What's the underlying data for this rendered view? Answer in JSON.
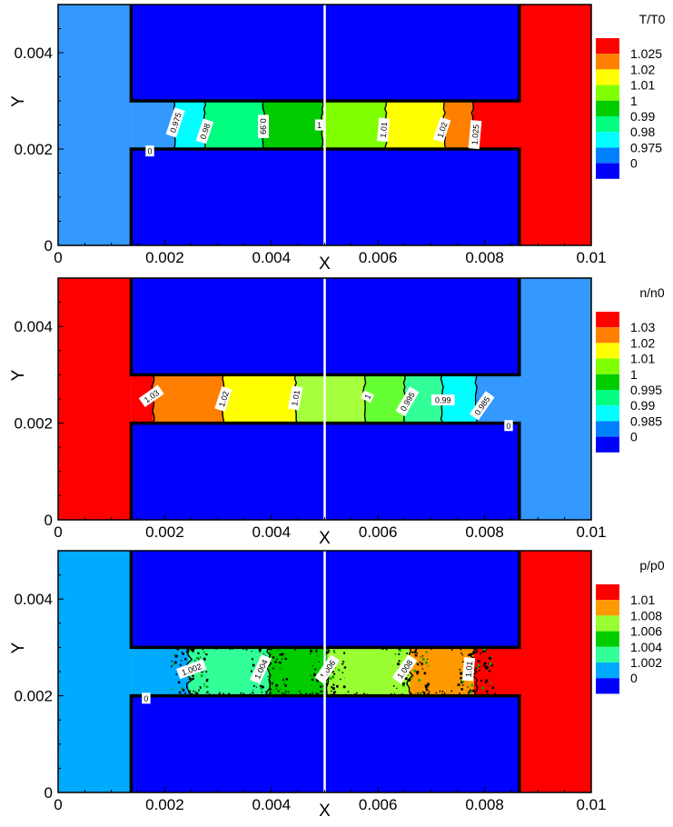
{
  "colors": {
    "background": "#ffffff",
    "block": "#0000ff",
    "wall": "#000000",
    "divider": "#ffffff"
  },
  "chart_data": [
    {
      "type": "contour",
      "xlabel": "X",
      "ylabel": "Y",
      "xlim": [
        0,
        0.01
      ],
      "ylim": [
        0,
        0.005
      ],
      "xticks": [
        "0",
        "0.002",
        "0.004",
        "0.006",
        "0.008",
        "0.01"
      ],
      "yticks": [
        "0",
        "0.002",
        "0.004"
      ],
      "geometry": {
        "left_reservoir_end": 0.00137,
        "right_reservoir_start": 0.00865,
        "channel_bottom": 0.002,
        "channel_top": 0.003
      },
      "legend": {
        "title": "T/T0",
        "levels": [
          {
            "label": "1.025",
            "color": "#ff0000"
          },
          {
            "label": "1.02",
            "color": "#ff8000"
          },
          {
            "label": "1.01",
            "color": "#ffff00"
          },
          {
            "label": "1",
            "color": "#80ff00"
          },
          {
            "label": "0.99",
            "color": "#00cc00"
          },
          {
            "label": "0.98",
            "color": "#00ff80"
          },
          {
            "label": "0.975",
            "color": "#00ffff"
          },
          {
            "label": "0",
            "color": "#0080ff"
          },
          {
            "label": "",
            "color": "#0000ff"
          }
        ]
      },
      "left_reservoir_color": "#3399ff",
      "right_reservoir_color": "#ff0000",
      "channel_bands": [
        {
          "x0": 0.00137,
          "x1": 0.00218,
          "color": "#3399ff"
        },
        {
          "x0": 0.00218,
          "x1": 0.00275,
          "color": "#00ffff"
        },
        {
          "x0": 0.00275,
          "x1": 0.00385,
          "color": "#00ff80"
        },
        {
          "x0": 0.00385,
          "x1": 0.00495,
          "color": "#00cc00"
        },
        {
          "x0": 0.00495,
          "x1": 0.00615,
          "color": "#80ff00"
        },
        {
          "x0": 0.00615,
          "x1": 0.00725,
          "color": "#ffff00"
        },
        {
          "x0": 0.00725,
          "x1": 0.00778,
          "color": "#ff8000"
        },
        {
          "x0": 0.00778,
          "x1": 0.00865,
          "color": "#ff0000"
        }
      ],
      "contour_lines": [
        0.00218,
        0.00275,
        0.00385,
        0.00495,
        0.00615,
        0.00725,
        0.00778
      ],
      "contour_labels": [
        {
          "text": "0.975",
          "x": 0.0022,
          "y": 0.00255,
          "rotate": -72
        },
        {
          "text": "0.98",
          "x": 0.00275,
          "y": 0.00237,
          "rotate": -72
        },
        {
          "text": "0.99",
          "x": 0.00385,
          "y": 0.00247,
          "rotate": 90
        },
        {
          "text": "1",
          "x": 0.0049,
          "y": 0.0025,
          "rotate": 0
        },
        {
          "text": "1.01",
          "x": 0.0061,
          "y": 0.0024,
          "rotate": -85
        },
        {
          "text": "1.02",
          "x": 0.0072,
          "y": 0.0024,
          "rotate": -72
        },
        {
          "text": "1.025",
          "x": 0.00782,
          "y": 0.0023,
          "rotate": -85
        },
        {
          "text": "0",
          "x": 0.00172,
          "y": 0.00196,
          "rotate": 0
        }
      ],
      "noisy": false
    },
    {
      "type": "contour",
      "xlabel": "X",
      "ylabel": "Y",
      "xlim": [
        0,
        0.01
      ],
      "ylim": [
        0,
        0.005
      ],
      "xticks": [
        "0",
        "0.002",
        "0.004",
        "0.006",
        "0.008",
        "0.01"
      ],
      "yticks": [
        "0",
        "0.002",
        "0.004"
      ],
      "geometry": {
        "left_reservoir_end": 0.00137,
        "right_reservoir_start": 0.00865,
        "channel_bottom": 0.002,
        "channel_top": 0.003
      },
      "legend": {
        "title": "n/n0",
        "levels": [
          {
            "label": "1.03",
            "color": "#ff0000"
          },
          {
            "label": "1.02",
            "color": "#ff8000"
          },
          {
            "label": "1.01",
            "color": "#ffff00"
          },
          {
            "label": "1",
            "color": "#80ff00"
          },
          {
            "label": "0.995",
            "color": "#00cc00"
          },
          {
            "label": "0.99",
            "color": "#00ff80"
          },
          {
            "label": "0.985",
            "color": "#00ffff"
          },
          {
            "label": "0",
            "color": "#0080ff"
          },
          {
            "label": "",
            "color": "#0000ff"
          }
        ]
      },
      "left_reservoir_color": "#ff0000",
      "right_reservoir_color": "#3399ff",
      "channel_bands": [
        {
          "x0": 0.00137,
          "x1": 0.00178,
          "color": "#ff0000"
        },
        {
          "x0": 0.00178,
          "x1": 0.0031,
          "color": "#ff8000"
        },
        {
          "x0": 0.0031,
          "x1": 0.00445,
          "color": "#ffff00"
        },
        {
          "x0": 0.00445,
          "x1": 0.00575,
          "color": "#a6ff3c"
        },
        {
          "x0": 0.00575,
          "x1": 0.0065,
          "color": "#66ff33"
        },
        {
          "x0": 0.0065,
          "x1": 0.0072,
          "color": "#33ff99"
        },
        {
          "x0": 0.0072,
          "x1": 0.00785,
          "color": "#00ffff"
        },
        {
          "x0": 0.00785,
          "x1": 0.00865,
          "color": "#3399ff"
        }
      ],
      "contour_lines": [
        0.00178,
        0.0031,
        0.00445,
        0.00575,
        0.0065,
        0.0072,
        0.00785
      ],
      "contour_labels": [
        {
          "text": "1.03",
          "x": 0.00175,
          "y": 0.00256,
          "rotate": -35
        },
        {
          "text": "1.02",
          "x": 0.0031,
          "y": 0.0025,
          "rotate": -72
        },
        {
          "text": "1.01",
          "x": 0.00445,
          "y": 0.00252,
          "rotate": -80
        },
        {
          "text": "1",
          "x": 0.0058,
          "y": 0.00255,
          "rotate": -65
        },
        {
          "text": "0.995",
          "x": 0.00655,
          "y": 0.00245,
          "rotate": -60
        },
        {
          "text": "0.99",
          "x": 0.00722,
          "y": 0.00248,
          "rotate": 0
        },
        {
          "text": "0.985",
          "x": 0.00795,
          "y": 0.00236,
          "rotate": -55
        },
        {
          "text": "0",
          "x": 0.00845,
          "y": 0.00195,
          "rotate": 0
        }
      ],
      "noisy": false
    },
    {
      "type": "contour",
      "xlabel": "X",
      "ylabel": "Y",
      "xlim": [
        0,
        0.01
      ],
      "ylim": [
        0,
        0.005
      ],
      "xticks": [
        "0",
        "0.002",
        "0.004",
        "0.006",
        "0.008",
        "0.01"
      ],
      "yticks": [
        "0",
        "0.002",
        "0.004"
      ],
      "geometry": {
        "left_reservoir_end": 0.00137,
        "right_reservoir_start": 0.00865,
        "channel_bottom": 0.002,
        "channel_top": 0.003
      },
      "legend": {
        "title": "p/p0",
        "levels": [
          {
            "label": "1.01",
            "color": "#ff0000"
          },
          {
            "label": "1.008",
            "color": "#ff9900"
          },
          {
            "label": "1.006",
            "color": "#99ff33"
          },
          {
            "label": "1.004",
            "color": "#00cc00"
          },
          {
            "label": "1.002",
            "color": "#33ff99"
          },
          {
            "label": "0",
            "color": "#00aaff"
          },
          {
            "label": "",
            "color": "#0000ff"
          }
        ]
      },
      "left_reservoir_color": "#00aaff",
      "right_reservoir_color": "#ff0000",
      "channel_bands": [
        {
          "x0": 0.00137,
          "x1": 0.00245,
          "color": "#00aaff"
        },
        {
          "x0": 0.00245,
          "x1": 0.00395,
          "color": "#33ff99"
        },
        {
          "x0": 0.00395,
          "x1": 0.00505,
          "color": "#00cc00"
        },
        {
          "x0": 0.00505,
          "x1": 0.0066,
          "color": "#99ff33"
        },
        {
          "x0": 0.0066,
          "x1": 0.0078,
          "color": "#ff9900"
        },
        {
          "x0": 0.0078,
          "x1": 0.00865,
          "color": "#ff0000"
        }
      ],
      "contour_lines": [
        0.00245,
        0.00395,
        0.00505,
        0.0066,
        0.0078
      ],
      "contour_labels": [
        {
          "text": "1.002",
          "x": 0.0025,
          "y": 0.00255,
          "rotate": -20
        },
        {
          "text": "1.004",
          "x": 0.0038,
          "y": 0.00255,
          "rotate": -65
        },
        {
          "text": "1.006",
          "x": 0.00505,
          "y": 0.00255,
          "rotate": -55
        },
        {
          "text": "1.008",
          "x": 0.0065,
          "y": 0.00255,
          "rotate": -55
        },
        {
          "text": "1.01",
          "x": 0.0077,
          "y": 0.00255,
          "rotate": -85
        },
        {
          "text": "0",
          "x": 0.00165,
          "y": 0.00195,
          "rotate": 0
        }
      ],
      "noisy": true
    }
  ]
}
